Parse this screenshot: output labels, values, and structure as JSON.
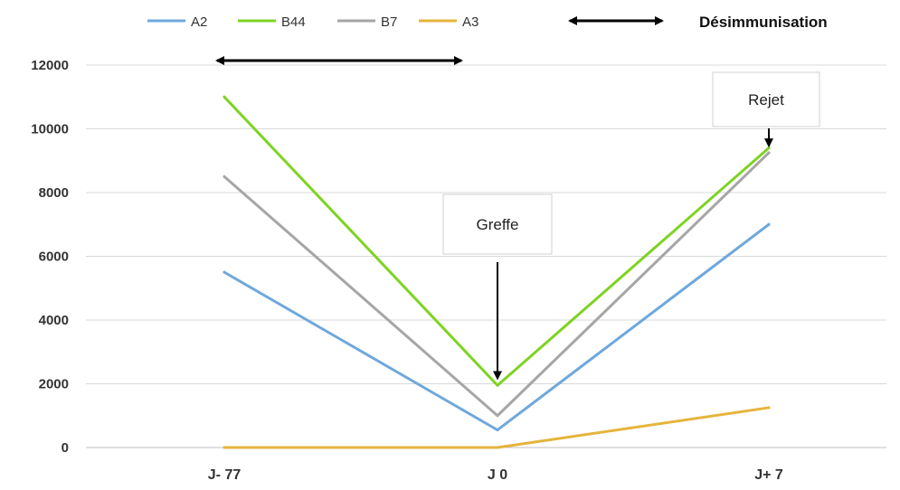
{
  "chart_data": {
    "type": "line",
    "categories": [
      "J- 77",
      "J 0",
      "J+ 7"
    ],
    "series": [
      {
        "name": "A2",
        "color": "#6fa8dc",
        "values": [
          5500,
          550,
          7000
        ]
      },
      {
        "name": "B44",
        "color": "#7ed321",
        "values": [
          11000,
          1950,
          9400
        ]
      },
      {
        "name": "B7",
        "color": "#a6a6a6",
        "values": [
          8500,
          1000,
          9250
        ]
      },
      {
        "name": "A3",
        "color": "#e6b43c",
        "values": [
          0,
          0,
          1250
        ]
      }
    ],
    "ylim": [
      0,
      12000
    ],
    "yticks": [
      0,
      2000,
      4000,
      6000,
      8000,
      10000,
      12000
    ],
    "grid": true,
    "legend_position": "top",
    "legend_extra_label": "Désimmunisation",
    "annotations": [
      {
        "text": "Greffe",
        "target_category": "J 0",
        "target_value": 2000
      },
      {
        "text": "Rejet",
        "target_category": "J+ 7",
        "target_value": 9300
      }
    ],
    "range_arrow": {
      "from": "J- 77",
      "to": "J 0",
      "label": "Désimmunisation"
    }
  }
}
